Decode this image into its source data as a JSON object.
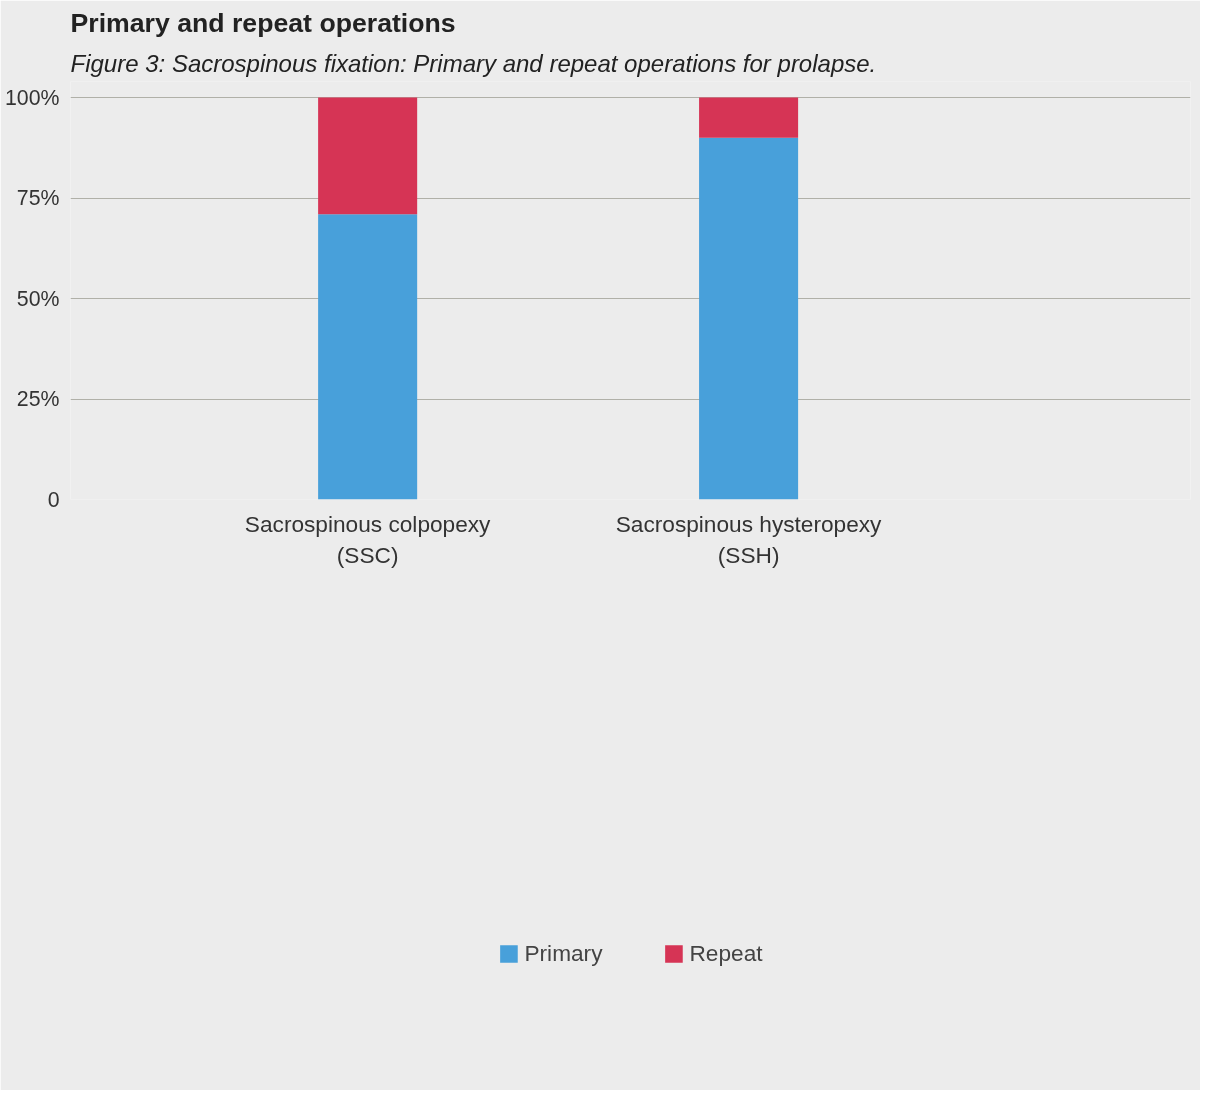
{
  "chart_data": {
    "type": "bar",
    "title": "Figure 3: Sacrospinous fixation: Primary and repeat operations for prolapse.",
    "subtitle": "Primary and repeat operations",
    "categories": [
      "Sacrospinous colpopexy\n(SSC)",
      "Sacrospinous hysteropexy\n(SSH)"
    ],
    "series": [
      {
        "name": "Primary",
        "color": "#48a0da",
        "values": [
          71,
          90
        ]
      },
      {
        "name": "Repeat",
        "color": "#d63455",
        "values": [
          29,
          10
        ]
      }
    ],
    "stacked": true,
    "ylim": [
      0,
      100
    ],
    "yticks": [
      0,
      {
        "value": 25,
        "label": "25%"
      },
      {
        "value": 50,
        "label": "50%"
      },
      {
        "value": 75,
        "label": "75%"
      },
      {
        "value": 100,
        "label": "100%"
      }
    ],
    "grid": "y",
    "legend": "bottom"
  }
}
